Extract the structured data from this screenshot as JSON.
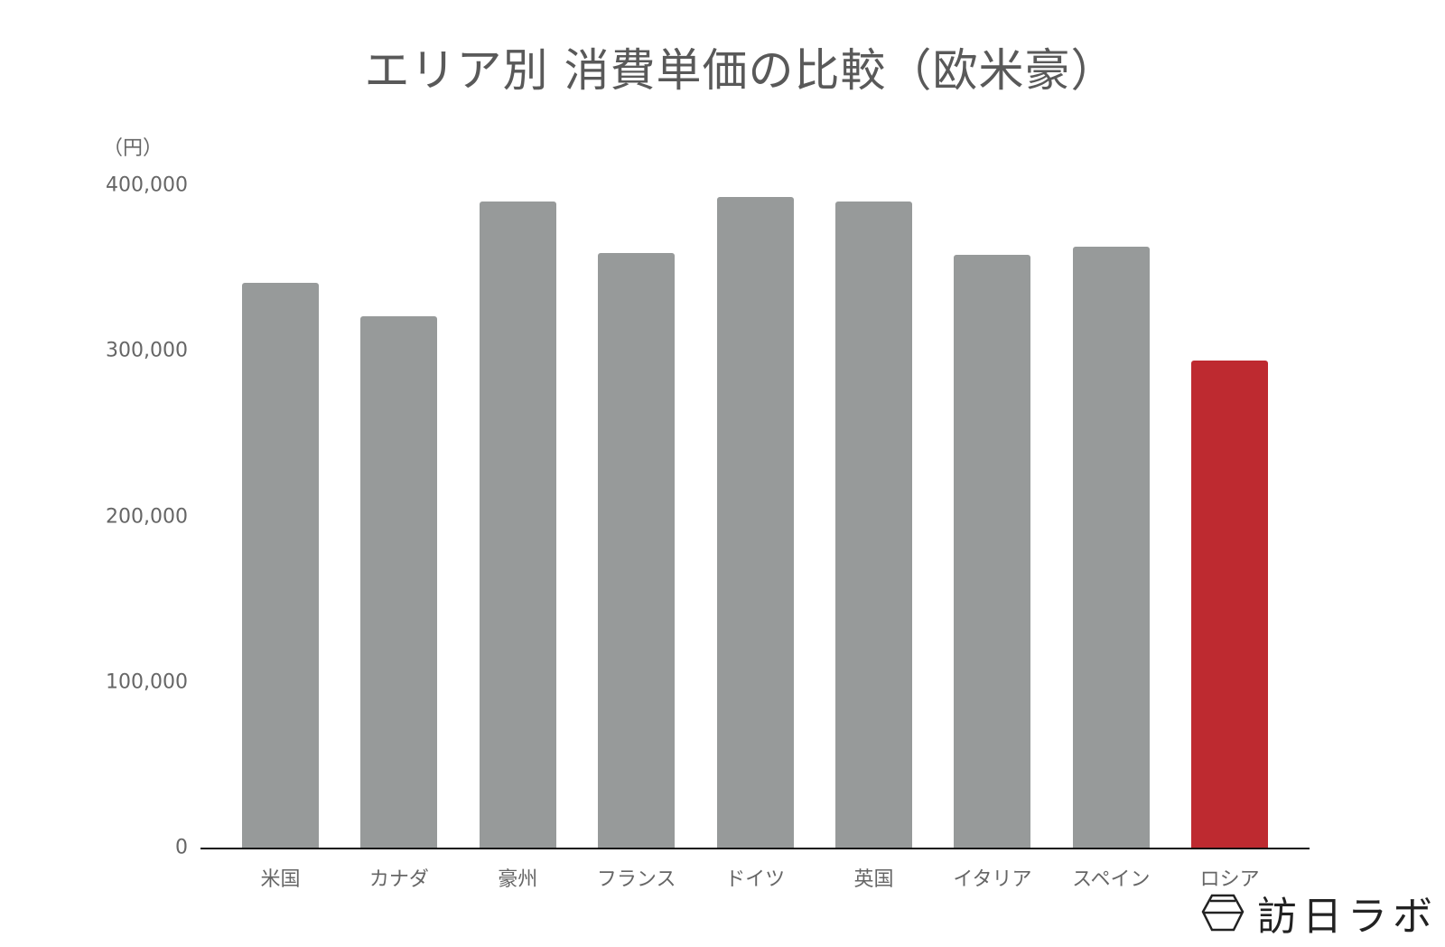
{
  "chart_data": {
    "type": "bar",
    "title": "エリア別 消費単価の比較（欧米豪）",
    "xlabel": "",
    "ylabel": "（円）",
    "ylim": [
      0,
      400000
    ],
    "yticks": [
      "0",
      "100,000",
      "200,000",
      "300,000",
      "400,000"
    ],
    "categories": [
      "米国",
      "カナダ",
      "豪州",
      "フランス",
      "ドイツ",
      "英国",
      "イタリア",
      "スペイン",
      "ロシア"
    ],
    "values": [
      341000,
      321000,
      390000,
      359000,
      393000,
      390000,
      358000,
      363000,
      294000
    ],
    "colors": [
      "#979a9a",
      "#979a9a",
      "#979a9a",
      "#979a9a",
      "#979a9a",
      "#979a9a",
      "#979a9a",
      "#979a9a",
      "#be2a30"
    ],
    "grid": false,
    "legend": null
  },
  "title": "エリア別 消費単価の比較（欧米豪）",
  "y_unit": "（円）",
  "yticks": [
    {
      "label": "400,000",
      "value": 400000
    },
    {
      "label": "300,000",
      "value": 300000
    },
    {
      "label": "200,000",
      "value": 200000
    },
    {
      "label": "100,000",
      "value": 100000
    },
    {
      "label": "0",
      "value": 0
    }
  ],
  "colors": {
    "bar_default": "#979a9a",
    "bar_highlight": "#be2a30",
    "axis": "#111111",
    "text": "#666666"
  },
  "logo": {
    "text": "訪日ラボ",
    "icon": "hexagon-logo-icon"
  }
}
